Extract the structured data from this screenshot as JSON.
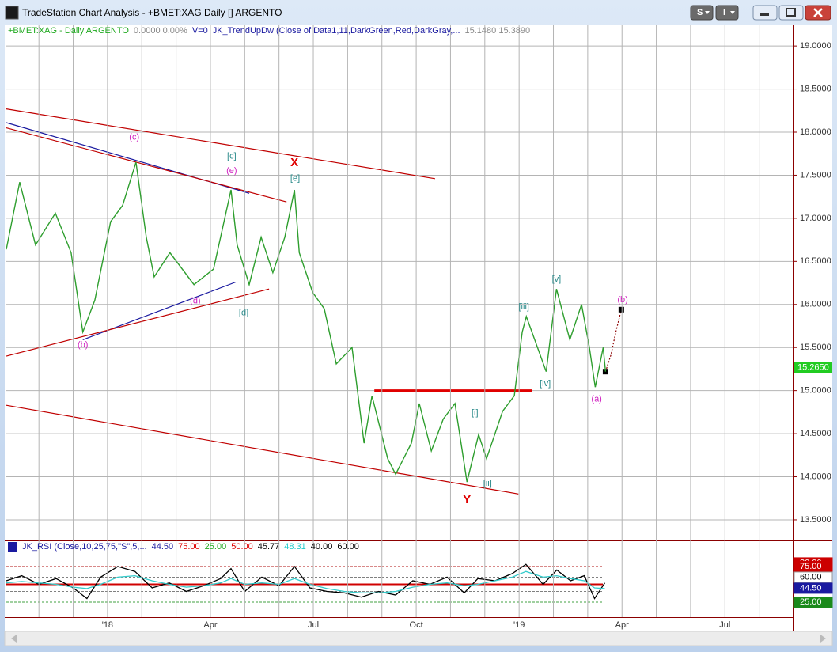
{
  "window": {
    "title": "TradeStation Chart Analysis - +BMET:XAG Daily [] ARGENTO",
    "buttons": [
      "S",
      "I"
    ]
  },
  "chart_data": [
    {
      "type": "line",
      "header": [
        {
          "text": "+BMET:XAG - Daily  ARGENTO",
          "color": "#22aa22"
        },
        {
          "text": "0.0000  0.00%",
          "color": "#888888"
        },
        {
          "text": "V=0",
          "color": "#1a1aa0"
        },
        {
          "text": "JK_TrendUpDw (Close of Data1,11,DarkGreen,Red,DarkGray,...",
          "color": "#1a1aa0"
        },
        {
          "text": "15.1480  15.3890",
          "color": "#888888"
        }
      ],
      "xlim": [
        -2.95,
        20.0
      ],
      "xticks": [
        {
          "value": -2,
          "label": null
        },
        {
          "value": -1,
          "label": null
        },
        {
          "value": 0,
          "label": "'18"
        },
        {
          "value": 1,
          "label": null
        },
        {
          "value": 2,
          "label": null
        },
        {
          "value": 3,
          "label": "Apr"
        },
        {
          "value": 4,
          "label": null
        },
        {
          "value": 5,
          "label": null
        },
        {
          "value": 6,
          "label": "Jul"
        },
        {
          "value": 7,
          "label": null
        },
        {
          "value": 8,
          "label": null
        },
        {
          "value": 9,
          "label": "Oct"
        },
        {
          "value": 10,
          "label": null
        },
        {
          "value": 11,
          "label": null
        },
        {
          "value": 12,
          "label": "'19"
        },
        {
          "value": 13,
          "label": null
        },
        {
          "value": 14,
          "label": null
        },
        {
          "value": 15,
          "label": "Apr"
        },
        {
          "value": 16,
          "label": null
        },
        {
          "value": 17,
          "label": null
        },
        {
          "value": 18,
          "label": "Jul"
        },
        {
          "value": 19,
          "label": null
        }
      ],
      "ylim": [
        13.27,
        19.24
      ],
      "yticks": [
        {
          "value": 13.5,
          "label": "13.5000"
        },
        {
          "value": 14,
          "label": "14.0000"
        },
        {
          "value": 14.5,
          "label": "14.5000"
        },
        {
          "value": 15,
          "label": "15.0000"
        },
        {
          "value": 15.5,
          "label": "15.5000"
        },
        {
          "value": 16,
          "label": "16.0000"
        },
        {
          "value": 16.5,
          "label": "16.5000"
        },
        {
          "value": 17,
          "label": "17.0000"
        },
        {
          "value": 17.5,
          "label": "17.5000"
        },
        {
          "value": 18,
          "label": "18.0000"
        },
        {
          "value": 18.5,
          "label": "18.5000"
        },
        {
          "value": 19,
          "label": "19.0000"
        }
      ],
      "grid": true,
      "x": [
        -2.95,
        -2.56,
        -2.1,
        -1.52,
        -1.06,
        -0.72,
        -0.37,
        0.09,
        0.44,
        0.83,
        1.13,
        1.36,
        1.82,
        2.52,
        3.09,
        3.6,
        3.78,
        4.13,
        4.48,
        4.82,
        5.17,
        5.45,
        5.59,
        5.98,
        6.32,
        6.67,
        7.13,
        7.48,
        7.71,
        8.17,
        8.4,
        8.86,
        9.09,
        9.44,
        9.79,
        10.13,
        10.48,
        10.82,
        11.05,
        11.52,
        11.86,
        12.09,
        12.21,
        12.79,
        13.09,
        13.48,
        13.82,
        14.05,
        14.22,
        14.45,
        14.52
      ],
      "series": [
        {
          "color": "#2e9e2e",
          "values": [
            16.64,
            17.42,
            16.69,
            17.06,
            16.6,
            15.68,
            16.05,
            16.96,
            17.15,
            17.65,
            16.78,
            16.32,
            16.6,
            16.23,
            16.41,
            17.33,
            16.69,
            16.23,
            16.78,
            16.37,
            16.78,
            17.33,
            16.6,
            16.14,
            15.95,
            15.31,
            15.5,
            14.39,
            14.94,
            14.21,
            14.03,
            14.39,
            14.85,
            14.3,
            14.67,
            14.85,
            13.94,
            14.49,
            14.21,
            14.76,
            14.94,
            15.68,
            15.86,
            15.22,
            16.18,
            15.59,
            16.0,
            15.5,
            15.04,
            15.5,
            15.22
          ]
        }
      ],
      "lines": [
        {
          "color": "#c00000",
          "x": [
            -2.95,
            9.55
          ],
          "y": [
            18.27,
            17.46
          ]
        },
        {
          "color": "#c00000",
          "x": [
            -2.95,
            11.98
          ],
          "y": [
            14.83,
            13.8
          ]
        },
        {
          "color": "#1a1aa0",
          "x": [
            -2.95,
            4.13
          ],
          "y": [
            18.11,
            17.29
          ]
        },
        {
          "color": "#c00000",
          "x": [
            -2.95,
            5.22
          ],
          "y": [
            18.05,
            17.19
          ]
        },
        {
          "color": "#1a1aa0",
          "x": [
            -0.72,
            3.74
          ],
          "y": [
            15.59,
            16.26
          ]
        },
        {
          "color": "#c00000",
          "x": [
            -2.95,
            4.71
          ],
          "y": [
            15.4,
            16.18
          ]
        },
        {
          "color": "#e00000",
          "x": [
            7.78,
            12.37
          ],
          "y": [
            15.0,
            15.0
          ]
        },
        {
          "color": "#8b0000",
          "dash": true,
          "x": [
            14.52,
            14.68,
            14.82,
            14.98
          ],
          "y": [
            15.22,
            15.42,
            15.68,
            15.94
          ]
        }
      ],
      "labels": [
        {
          "text": "(c)",
          "color": "#d020c0",
          "x": 0.78,
          "y": 17.94
        },
        {
          "text": "[c]",
          "color": "#2a8a8a",
          "x": 3.62,
          "y": 17.72
        },
        {
          "text": "(e)",
          "color": "#d020c0",
          "x": 3.62,
          "y": 17.55
        },
        {
          "text": "X",
          "color": "#e00000",
          "x": 5.45,
          "y": 17.64
        },
        {
          "text": "[e]",
          "color": "#2a8a8a",
          "x": 5.47,
          "y": 17.46
        },
        {
          "text": "(d)",
          "color": "#d020c0",
          "x": 2.56,
          "y": 16.04
        },
        {
          "text": "[d]",
          "color": "#2a8a8a",
          "x": 3.97,
          "y": 15.9
        },
        {
          "text": "(b)",
          "color": "#d020c0",
          "x": -0.72,
          "y": 15.53
        },
        {
          "text": "[i]",
          "color": "#2a8a8a",
          "x": 10.71,
          "y": 14.74
        },
        {
          "text": "[ii]",
          "color": "#2a8a8a",
          "x": 11.08,
          "y": 13.92
        },
        {
          "text": "Y",
          "color": "#e00000",
          "x": 10.48,
          "y": 13.73
        },
        {
          "text": "[iii]",
          "color": "#2a8a8a",
          "x": 12.14,
          "y": 15.97
        },
        {
          "text": "[v]",
          "color": "#2a8a8a",
          "x": 13.09,
          "y": 16.29
        },
        {
          "text": "[iv]",
          "color": "#2a8a8a",
          "x": 12.76,
          "y": 15.08
        },
        {
          "text": "(a)",
          "color": "#d020c0",
          "x": 14.26,
          "y": 14.9
        },
        {
          "text": "(b)",
          "color": "#d020c0",
          "x": 15.02,
          "y": 16.05
        }
      ],
      "last": {
        "value": 15.265,
        "label": "15.2650",
        "color": "#22cc22"
      }
    },
    {
      "type": "line",
      "header": [
        {
          "text": "JK_RSI (Close,10,25,75,\"S\",5,...",
          "color": "#1a1aa0"
        },
        {
          "text": "44.50",
          "color": "#1a1aa0"
        },
        {
          "text": "75.00",
          "color": "#e00000"
        },
        {
          "text": "25.00",
          "color": "#22aa22"
        },
        {
          "text": "50.00",
          "color": "#e00000"
        },
        {
          "text": "45.77",
          "color": "#000000"
        },
        {
          "text": "48.31",
          "color": "#22cccc"
        },
        {
          "text": "40.00",
          "color": "#000000"
        },
        {
          "text": "60.00",
          "color": "#000000"
        }
      ],
      "ylim": [
        15,
        96
      ],
      "levels": [
        75,
        60,
        50,
        40,
        25
      ],
      "level_colors": [
        "#c04040",
        "#808080",
        "#d00000",
        "#808080",
        "#40a040"
      ],
      "x": [
        -2.95,
        -2.5,
        -2,
        -1.5,
        -1,
        -0.6,
        -0.2,
        0.3,
        0.8,
        1.3,
        1.8,
        2.3,
        2.8,
        3.3,
        3.6,
        4.0,
        4.5,
        5.0,
        5.45,
        5.9,
        6.4,
        6.9,
        7.4,
        7.9,
        8.4,
        8.9,
        9.4,
        9.9,
        10.4,
        10.8,
        11.3,
        11.8,
        12.2,
        12.7,
        13.1,
        13.5,
        13.9,
        14.2,
        14.5
      ],
      "series": [
        {
          "color": "#000000",
          "values": [
            55,
            62,
            50,
            58,
            45,
            30,
            60,
            75,
            68,
            45,
            52,
            40,
            48,
            58,
            72,
            40,
            60,
            48,
            75,
            45,
            40,
            38,
            32,
            40,
            35,
            55,
            50,
            60,
            38,
            58,
            55,
            65,
            78,
            50,
            70,
            55,
            62,
            30,
            52
          ]
        },
        {
          "color": "#33cccc",
          "values": [
            52,
            54,
            52,
            50,
            46,
            44,
            50,
            60,
            62,
            55,
            50,
            46,
            48,
            52,
            58,
            50,
            52,
            50,
            58,
            50,
            44,
            40,
            38,
            38,
            40,
            46,
            50,
            52,
            48,
            50,
            55,
            60,
            68,
            60,
            62,
            58,
            55,
            45,
            44
          ]
        }
      ],
      "yticks": [
        {
          "value": 80,
          "label": "80.00"
        },
        {
          "value": 75,
          "label": "75.00"
        },
        {
          "value": 60,
          "label": "60.00"
        },
        {
          "value": 44.5,
          "label": "44.50"
        },
        {
          "value": 25,
          "label": "25.00"
        }
      ],
      "tag_colors": [
        "#cc0000",
        "#cc0000",
        "#ffffff",
        "#1a1aa0",
        "#1a8a1a"
      ]
    }
  ]
}
